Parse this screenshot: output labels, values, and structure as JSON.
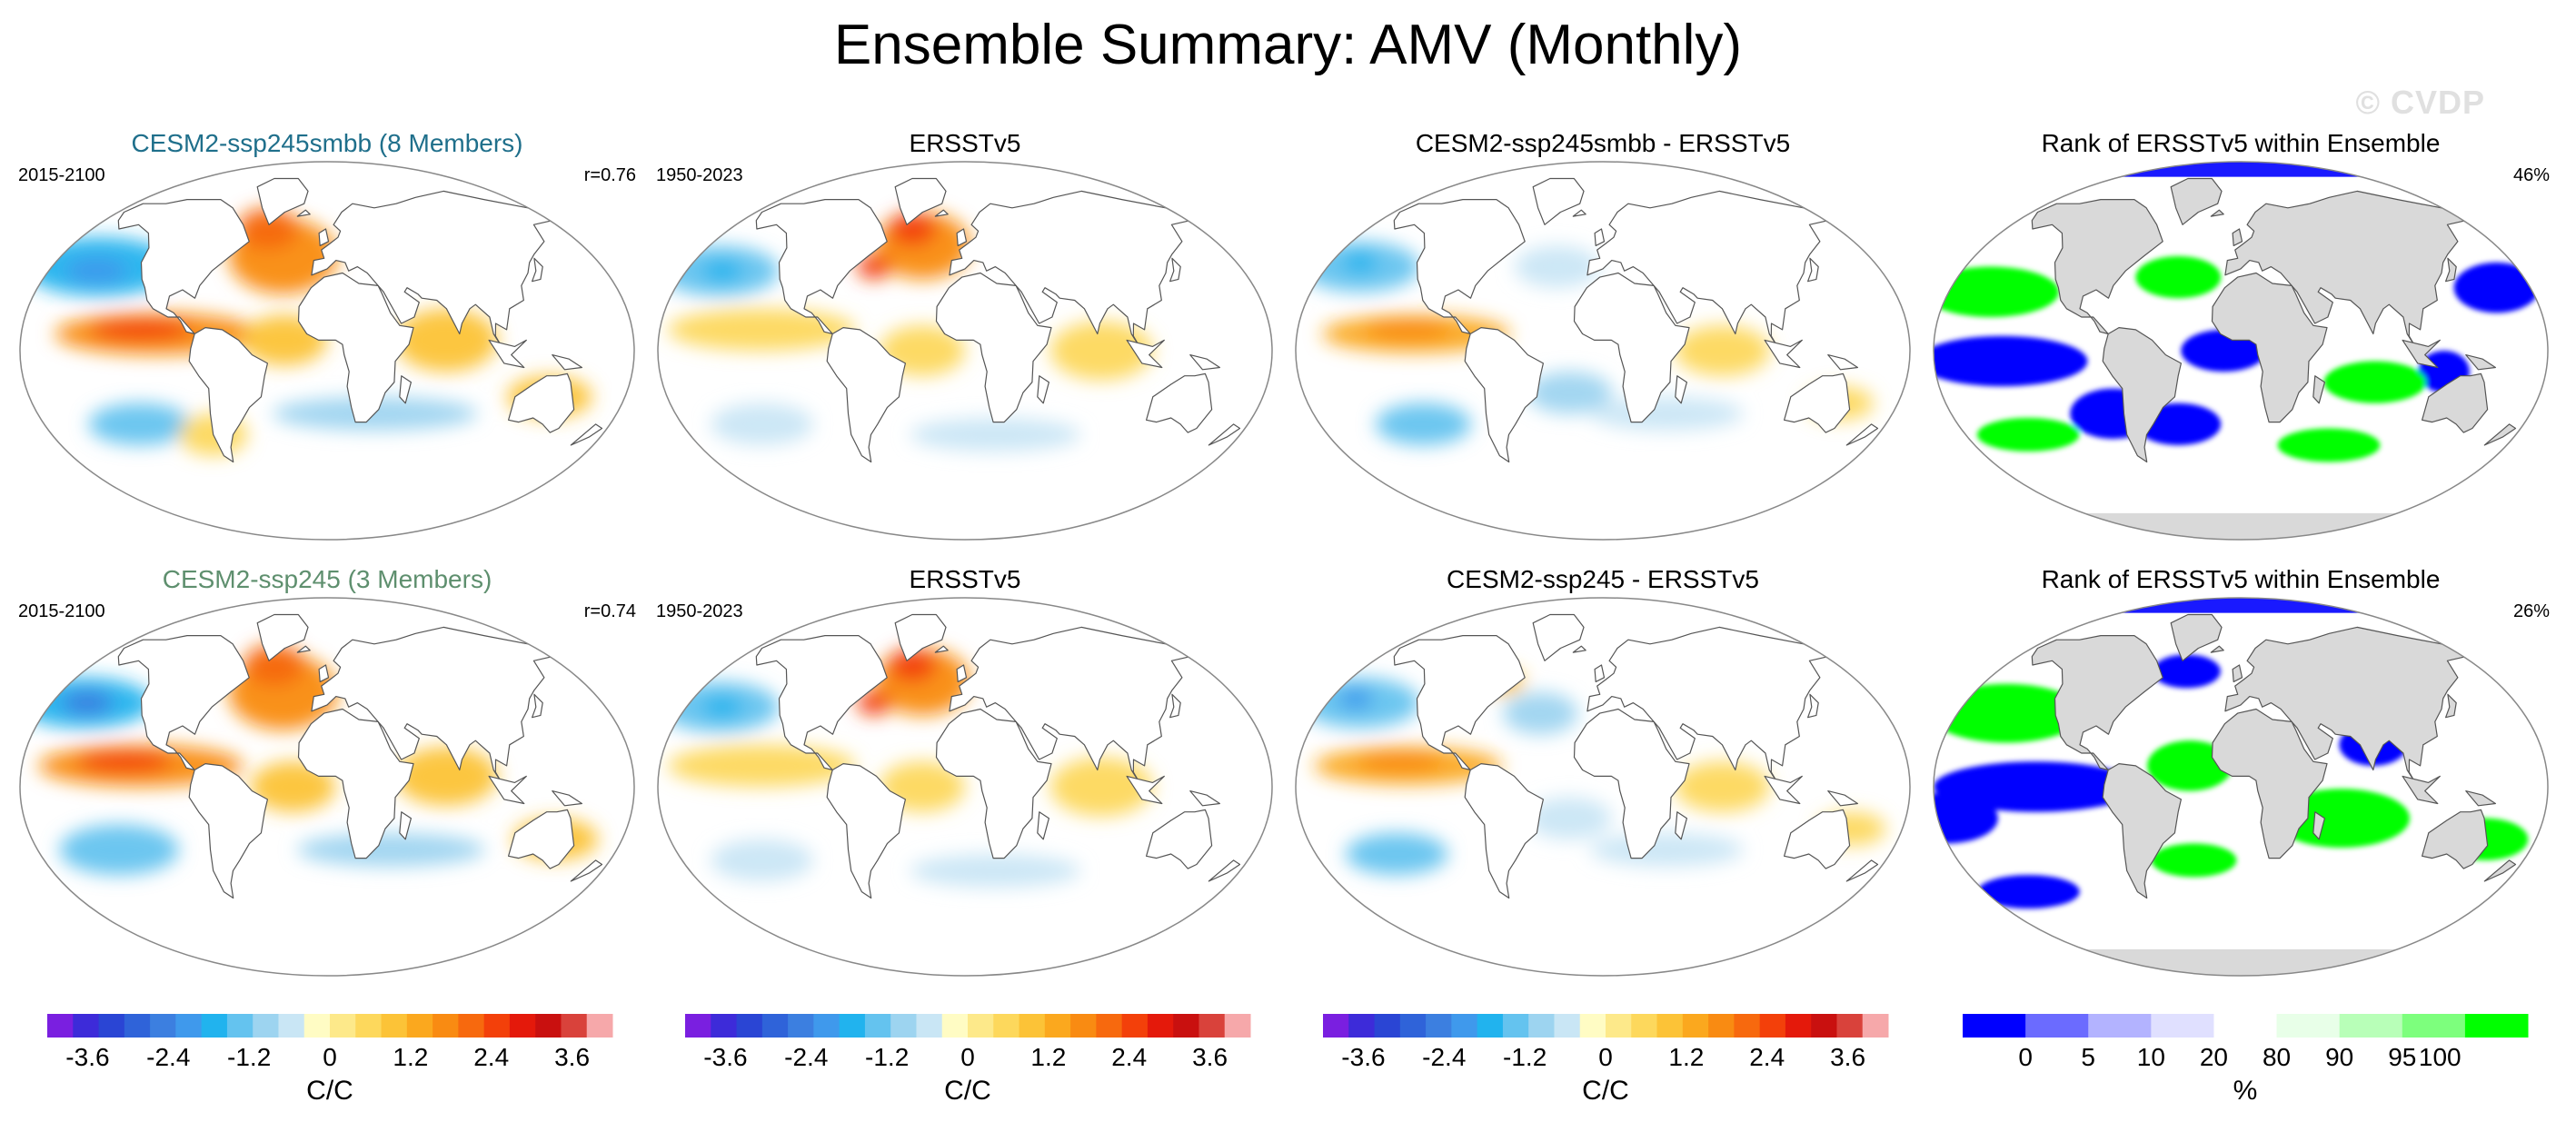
{
  "title": "Ensemble Summary: AMV (Monthly)",
  "watermark": "© CVDP",
  "colors": {
    "cesm_smbb_title": "#1f6f8b",
    "cesm_title": "#5e8f6e",
    "ocean_neutral": "#ffffff",
    "land": "#ffffff",
    "rank_land": "#d9d9d9"
  },
  "rows": [
    {
      "panels": [
        {
          "kind": "anomaly",
          "title": "CESM2-ssp245smbb (8 Members)",
          "title_color": "cesm_smbb_title",
          "left_label": "2015-2100",
          "right_label": "r=0.76",
          "field": "model1"
        },
        {
          "kind": "anomaly",
          "title": "ERSSTv5",
          "left_label": "1950-2023",
          "right_label": "",
          "field": "obs"
        },
        {
          "kind": "anomaly",
          "title": "CESM2-ssp245smbb - ERSSTv5",
          "left_label": "",
          "right_label": "",
          "field": "diff1"
        },
        {
          "kind": "rank",
          "title": "Rank of ERSSTv5 within Ensemble",
          "left_label": "",
          "right_label": "46%",
          "field": "rank1"
        }
      ]
    },
    {
      "panels": [
        {
          "kind": "anomaly",
          "title": "CESM2-ssp245 (3 Members)",
          "title_color": "cesm_title",
          "left_label": "2015-2100",
          "right_label": "r=0.74",
          "field": "model2"
        },
        {
          "kind": "anomaly",
          "title": "ERSSTv5",
          "left_label": "1950-2023",
          "right_label": "",
          "field": "obs"
        },
        {
          "kind": "anomaly",
          "title": "CESM2-ssp245 - ERSSTv5",
          "left_label": "",
          "right_label": "",
          "field": "diff2"
        },
        {
          "kind": "rank",
          "title": "Rank of ERSSTv5 within Ensemble",
          "left_label": "",
          "right_label": "26%",
          "field": "rank2"
        }
      ]
    }
  ],
  "colorbars": [
    {
      "kind": "anomaly",
      "unit": "C/C",
      "tick_labels": [
        "-3.6",
        "-2.4",
        "-1.2",
        "0",
        "1.2",
        "2.4",
        "3.6"
      ]
    },
    {
      "kind": "anomaly",
      "unit": "C/C",
      "tick_labels": [
        "-3.6",
        "-2.4",
        "-1.2",
        "0",
        "1.2",
        "2.4",
        "3.6"
      ]
    },
    {
      "kind": "anomaly",
      "unit": "C/C",
      "tick_labels": [
        "-3.6",
        "-2.4",
        "-1.2",
        "0",
        "1.2",
        "2.4",
        "3.6"
      ]
    },
    {
      "kind": "rank",
      "unit": "%",
      "tick_labels": [
        "0",
        "5",
        "10",
        "20",
        "80",
        "90",
        "95",
        "100"
      ]
    }
  ],
  "chart_data": {
    "type": "heatmap",
    "title": "Ensemble Summary: AMV (Monthly)",
    "projection": "global map (Robinson-like ellipse)",
    "anomaly_scale": {
      "unit": "C/C",
      "range": [
        -4.2,
        4.2
      ],
      "interval": 0.4,
      "labeled_ticks": [
        -3.6,
        -2.4,
        -1.2,
        0,
        1.2,
        2.4,
        3.6
      ],
      "colors": [
        "#7a1fe0",
        "#3d2bd9",
        "#2a45d4",
        "#2f63d9",
        "#3c7fe0",
        "#3f99ec",
        "#21b3ee",
        "#64c3ef",
        "#9dd4f0",
        "#c9e6f5",
        "#fffcc4",
        "#fde98a",
        "#fdd85c",
        "#fcc337",
        "#fba81e",
        "#f98b12",
        "#f7690e",
        "#f3400a",
        "#e4190b",
        "#c9100f",
        "#d9423b",
        "#f6a8aa"
      ]
    },
    "rank_scale": {
      "unit": "%",
      "bounds": [
        0,
        5,
        10,
        20,
        80,
        90,
        95,
        100
      ],
      "colors": [
        "#0000ff",
        "#6b6bff",
        "#b3b3ff",
        "#e0e0ff",
        "#ffffff",
        "#e8ffe8",
        "#b8ffb8",
        "#7dff7d",
        "#00ff00"
      ]
    },
    "panels": [
      {
        "row": 1,
        "col": 1,
        "name": "CESM2-ssp245smbb (8 Members)",
        "period": "2015-2100",
        "pattern_correlation": 0.76
      },
      {
        "row": 1,
        "col": 2,
        "name": "ERSSTv5",
        "period": "1950-2023"
      },
      {
        "row": 1,
        "col": 3,
        "name": "CESM2-ssp245smbb - ERSSTv5"
      },
      {
        "row": 1,
        "col": 4,
        "name": "Rank of ERSSTv5 within Ensemble",
        "area_percent": 46
      },
      {
        "row": 2,
        "col": 1,
        "name": "CESM2-ssp245 (3 Members)",
        "period": "2015-2100",
        "pattern_correlation": 0.74
      },
      {
        "row": 2,
        "col": 2,
        "name": "ERSSTv5",
        "period": "1950-2023"
      },
      {
        "row": 2,
        "col": 3,
        "name": "CESM2-ssp245 - ERSSTv5"
      },
      {
        "row": 2,
        "col": 4,
        "name": "Rank of ERSSTv5 within Ensemble",
        "area_percent": 26
      }
    ],
    "fields": {
      "model1": [
        {
          "lon": -150,
          "lat": 40,
          "w": 45,
          "h": 14,
          "v": -1.6
        },
        {
          "lon": -150,
          "lat": 38,
          "w": 18,
          "h": 6,
          "v": -2.2
        },
        {
          "lon": -120,
          "lat": -35,
          "w": 30,
          "h": 10,
          "v": -1.4
        },
        {
          "lon": 30,
          "lat": -30,
          "w": 60,
          "h": 8,
          "v": -0.8
        },
        {
          "lon": -30,
          "lat": 45,
          "w": 32,
          "h": 18,
          "v": 1.8
        },
        {
          "lon": -45,
          "lat": 58,
          "w": 18,
          "h": 10,
          "v": 2.4
        },
        {
          "lon": -100,
          "lat": 8,
          "w": 60,
          "h": 10,
          "v": 2.0
        },
        {
          "lon": -110,
          "lat": 10,
          "w": 30,
          "h": 5,
          "v": 2.6
        },
        {
          "lon": 70,
          "lat": 5,
          "w": 30,
          "h": 15,
          "v": 1.4
        },
        {
          "lon": 135,
          "lat": -22,
          "w": 25,
          "h": 10,
          "v": 1.3
        },
        {
          "lon": -25,
          "lat": 5,
          "w": 25,
          "h": 12,
          "v": 1.2
        },
        {
          "lon": -75,
          "lat": -40,
          "w": 20,
          "h": 10,
          "v": 0.9
        }
      ],
      "model2": [
        {
          "lon": -160,
          "lat": 40,
          "w": 40,
          "h": 12,
          "v": -1.8
        },
        {
          "lon": -158,
          "lat": 40,
          "w": 15,
          "h": 6,
          "v": -2.4
        },
        {
          "lon": -130,
          "lat": -30,
          "w": 35,
          "h": 12,
          "v": -1.2
        },
        {
          "lon": 40,
          "lat": -30,
          "w": 55,
          "h": 8,
          "v": -0.8
        },
        {
          "lon": -30,
          "lat": 45,
          "w": 32,
          "h": 18,
          "v": 1.8
        },
        {
          "lon": -40,
          "lat": 58,
          "w": 18,
          "h": 10,
          "v": 2.4
        },
        {
          "lon": -110,
          "lat": 10,
          "w": 60,
          "h": 10,
          "v": 2.0
        },
        {
          "lon": -120,
          "lat": 12,
          "w": 28,
          "h": 5,
          "v": 2.6
        },
        {
          "lon": 70,
          "lat": 5,
          "w": 30,
          "h": 14,
          "v": 1.3
        },
        {
          "lon": 140,
          "lat": -25,
          "w": 25,
          "h": 10,
          "v": 1.1
        },
        {
          "lon": -20,
          "lat": 0,
          "w": 25,
          "h": 12,
          "v": 1.2
        }
      ],
      "obs": [
        {
          "lon": -160,
          "lat": 38,
          "w": 35,
          "h": 12,
          "v": -1.2
        },
        {
          "lon": -158,
          "lat": 38,
          "w": 12,
          "h": 5,
          "v": -1.8
        },
        {
          "lon": -130,
          "lat": -35,
          "w": 30,
          "h": 10,
          "v": -0.6
        },
        {
          "lon": -30,
          "lat": 50,
          "w": 28,
          "h": 16,
          "v": 2.0
        },
        {
          "lon": -40,
          "lat": 58,
          "w": 14,
          "h": 8,
          "v": 2.6
        },
        {
          "lon": -60,
          "lat": 40,
          "w": 10,
          "h": 6,
          "v": 2.8
        },
        {
          "lon": -120,
          "lat": 10,
          "w": 55,
          "h": 10,
          "v": 0.9
        },
        {
          "lon": 80,
          "lat": 0,
          "w": 30,
          "h": 14,
          "v": 0.8
        },
        {
          "lon": -25,
          "lat": 0,
          "w": 25,
          "h": 12,
          "v": 0.7
        },
        {
          "lon": 20,
          "lat": -40,
          "w": 50,
          "h": 8,
          "v": -0.5
        }
      ],
      "diff1": [
        {
          "lon": -160,
          "lat": 40,
          "w": 35,
          "h": 12,
          "v": -1.2
        },
        {
          "lon": -162,
          "lat": 42,
          "w": 10,
          "h": 5,
          "v": -1.8
        },
        {
          "lon": -115,
          "lat": -35,
          "w": 28,
          "h": 10,
          "v": -1.4
        },
        {
          "lon": -110,
          "lat": 8,
          "w": 55,
          "h": 9,
          "v": 1.6
        },
        {
          "lon": -115,
          "lat": 10,
          "w": 25,
          "h": 5,
          "v": 2.0
        },
        {
          "lon": -30,
          "lat": 40,
          "w": 25,
          "h": 10,
          "v": -0.6
        },
        {
          "lon": 70,
          "lat": 0,
          "w": 28,
          "h": 12,
          "v": 0.9
        },
        {
          "lon": -20,
          "lat": -20,
          "w": 25,
          "h": 10,
          "v": -0.9
        },
        {
          "lon": 40,
          "lat": -30,
          "w": 45,
          "h": 8,
          "v": -0.5
        },
        {
          "lon": 145,
          "lat": -25,
          "w": 20,
          "h": 8,
          "v": 0.7
        }
      ],
      "diff2": [
        {
          "lon": -160,
          "lat": 40,
          "w": 35,
          "h": 12,
          "v": -1.4
        },
        {
          "lon": -165,
          "lat": 42,
          "w": 10,
          "h": 5,
          "v": -2.0
        },
        {
          "lon": -130,
          "lat": -32,
          "w": 30,
          "h": 10,
          "v": -1.2
        },
        {
          "lon": -115,
          "lat": 10,
          "w": 55,
          "h": 9,
          "v": 1.6
        },
        {
          "lon": -120,
          "lat": 12,
          "w": 25,
          "h": 5,
          "v": 2.0
        },
        {
          "lon": -40,
          "lat": 35,
          "w": 22,
          "h": 10,
          "v": -0.7
        },
        {
          "lon": -70,
          "lat": 50,
          "w": 12,
          "h": 6,
          "v": 1.0
        },
        {
          "lon": 70,
          "lat": 0,
          "w": 28,
          "h": 12,
          "v": 0.8
        },
        {
          "lon": -20,
          "lat": -15,
          "w": 25,
          "h": 10,
          "v": -0.6
        },
        {
          "lon": 40,
          "lat": -30,
          "w": 45,
          "h": 8,
          "v": -0.6
        },
        {
          "lon": 150,
          "lat": -20,
          "w": 20,
          "h": 8,
          "v": 0.9
        }
      ],
      "rank1": [
        {
          "lon": -140,
          "lat": -5,
          "w": 50,
          "h": 12,
          "v": 0
        },
        {
          "lon": -80,
          "lat": -30,
          "w": 25,
          "h": 12,
          "v": 0
        },
        {
          "lon": -40,
          "lat": -35,
          "w": 25,
          "h": 10,
          "v": 0
        },
        {
          "lon": -10,
          "lat": 0,
          "w": 25,
          "h": 10,
          "v": 0
        },
        {
          "lon": 160,
          "lat": 30,
          "w": 25,
          "h": 12,
          "v": 0
        },
        {
          "lon": 120,
          "lat": -10,
          "w": 15,
          "h": 10,
          "v": 0
        },
        {
          "lon": -155,
          "lat": 28,
          "w": 40,
          "h": 12,
          "v": 100
        },
        {
          "lon": -40,
          "lat": 35,
          "w": 25,
          "h": 10,
          "v": 100
        },
        {
          "lon": 80,
          "lat": -15,
          "w": 30,
          "h": 10,
          "v": 100
        },
        {
          "lon": -140,
          "lat": -40,
          "w": 30,
          "h": 8,
          "v": 100
        },
        {
          "lon": 60,
          "lat": -45,
          "w": 30,
          "h": 8,
          "v": 100
        }
      ],
      "rank2": [
        {
          "lon": -120,
          "lat": 0,
          "w": 60,
          "h": 12,
          "v": 0
        },
        {
          "lon": -175,
          "lat": -15,
          "w": 30,
          "h": 12,
          "v": 0
        },
        {
          "lon": -40,
          "lat": 55,
          "w": 20,
          "h": 8,
          "v": 0
        },
        {
          "lon": 80,
          "lat": 20,
          "w": 20,
          "h": 10,
          "v": 0
        },
        {
          "lon": -150,
          "lat": -50,
          "w": 30,
          "h": 8,
          "v": 0
        },
        {
          "lon": -150,
          "lat": 35,
          "w": 45,
          "h": 14,
          "v": 100
        },
        {
          "lon": 60,
          "lat": -15,
          "w": 40,
          "h": 14,
          "v": 100
        },
        {
          "lon": -30,
          "lat": 10,
          "w": 25,
          "h": 12,
          "v": 100
        },
        {
          "lon": -30,
          "lat": -35,
          "w": 25,
          "h": 8,
          "v": 100
        },
        {
          "lon": 150,
          "lat": -25,
          "w": 25,
          "h": 10,
          "v": 100
        }
      ]
    }
  }
}
